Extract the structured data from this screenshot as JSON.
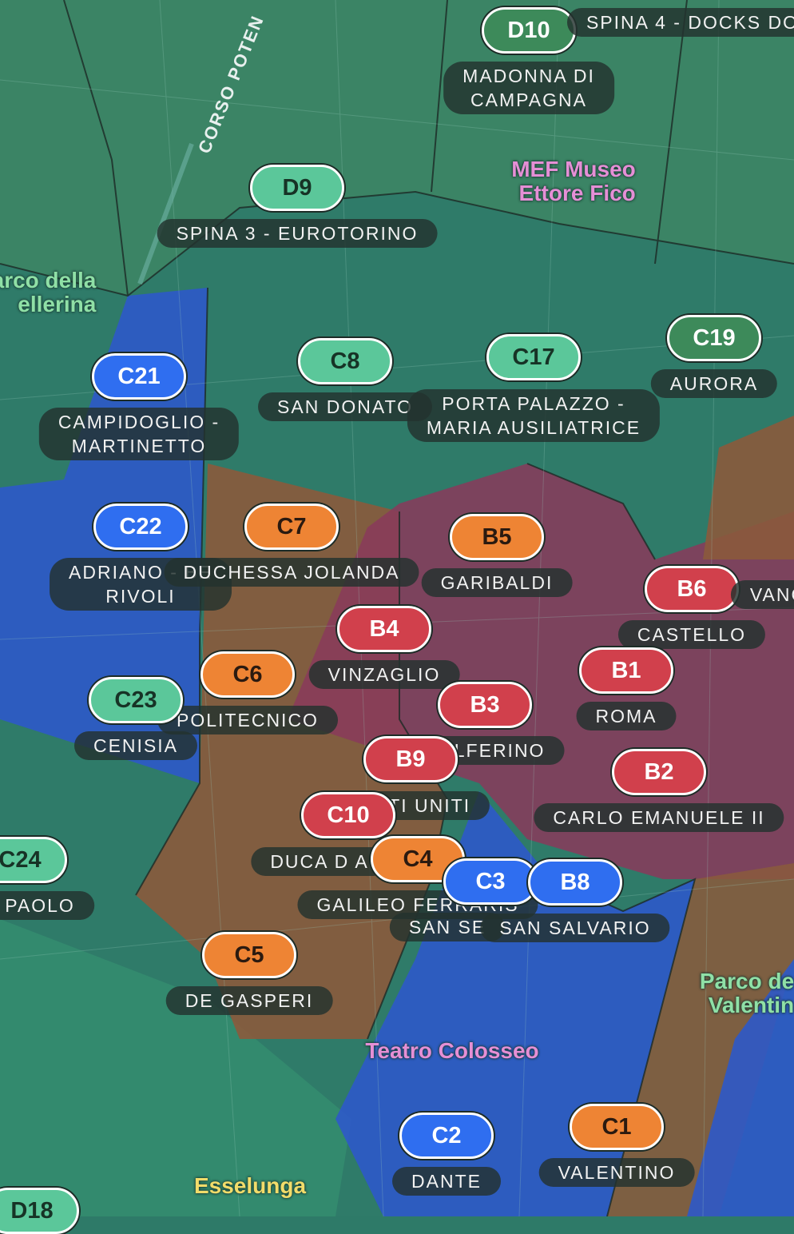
{
  "street": "CORSO POTEN",
  "zones": [
    {
      "code": "D10",
      "name": [
        "MADONNA DI",
        "CAMPAGNA"
      ]
    },
    {
      "code": "D9",
      "name": [
        "SPINA 3 - EUROTORINO"
      ]
    },
    {
      "code": "C8",
      "name": [
        "SAN DONATO"
      ]
    },
    {
      "code": "C17",
      "name": [
        "PORTA PALAZZO -",
        "MARIA AUSILIATRICE"
      ]
    },
    {
      "code": "C19",
      "name": [
        "AURORA"
      ]
    },
    {
      "code": "C21",
      "name": [
        "CAMPIDOGLIO -",
        "MARTINETTO"
      ]
    },
    {
      "code": "C22",
      "name": [
        "ADRIANO - BE",
        "RIVOLI"
      ]
    },
    {
      "code": "C7",
      "name": [
        "DUCHESSA JOLANDA"
      ]
    },
    {
      "code": "B5",
      "name": [
        "GARIBALDI"
      ]
    },
    {
      "code": "B6",
      "name": [
        "CASTELLO"
      ]
    },
    {
      "code": "B4",
      "name": [
        "VINZAGLIO"
      ]
    },
    {
      "code": "B1",
      "name": [
        "ROMA"
      ]
    },
    {
      "code": "C6",
      "name": [
        "POLITECNICO"
      ]
    },
    {
      "code": "C23",
      "name": [
        "CENISIA"
      ]
    },
    {
      "code": "B3",
      "name": [
        "SOLFERINO"
      ]
    },
    {
      "code": "B9",
      "name": [
        "STATI UNITI"
      ]
    },
    {
      "code": "B2",
      "name": [
        "CARLO EMANUELE II"
      ]
    },
    {
      "code": "C10",
      "name": [
        "DUCA D A"
      ]
    },
    {
      "code": "C4",
      "name": [
        "GALILEO FERRARIS"
      ]
    },
    {
      "code": "C3",
      "name": [
        "SAN SE"
      ]
    },
    {
      "code": "B8",
      "name": [
        "SAN SALVARIO"
      ]
    },
    {
      "code": "C24",
      "name": [
        "PAOLO"
      ]
    },
    {
      "code": "C5",
      "name": [
        "DE GASPERI"
      ]
    },
    {
      "code": "C2",
      "name": [
        "DANTE"
      ]
    },
    {
      "code": "C1",
      "name": [
        "VALENTINO"
      ]
    },
    {
      "code": "D18",
      "name": []
    }
  ],
  "edge_labels": [
    "SPINA 4 - DOCKS DO",
    "VANC"
  ],
  "pois": [
    {
      "name": [
        "MEF Museo",
        "Ettore Fico"
      ]
    },
    {
      "name": [
        "arco della",
        "ellerina"
      ]
    },
    {
      "name": [
        "Teatro Colosseo"
      ]
    },
    {
      "name": [
        "Parco de",
        "Valentin"
      ]
    },
    {
      "name": [
        "Esselunga"
      ]
    }
  ]
}
